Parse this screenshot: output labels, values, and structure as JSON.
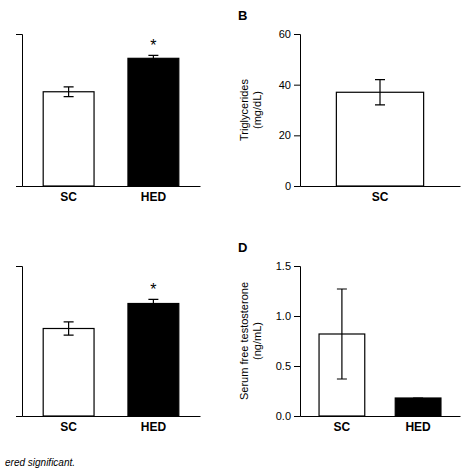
{
  "chart_data": [
    {
      "type": "bar",
      "categories": [
        "SC",
        "HED"
      ],
      "values": [
        155,
        210
      ],
      "errors": [
        8,
        5
      ],
      "colors": [
        "#ffffff",
        "#000000"
      ],
      "ylim": [
        0,
        250
      ],
      "tick_labels": "x",
      "annotations": [
        {
          "text": "*",
          "category": "HED"
        }
      ]
    },
    {
      "type": "bar",
      "title": "B",
      "categories": [
        "SC"
      ],
      "values": [
        37
      ],
      "errors": [
        5
      ],
      "colors": [
        "#ffffff"
      ],
      "ylim": [
        0,
        60
      ],
      "yticks": [
        0,
        20,
        40,
        60
      ],
      "ylabel": "Triglycerides\n(mg/dL)"
    },
    {
      "type": "bar",
      "categories": [
        "SC",
        "HED"
      ],
      "values": [
        1.05,
        1.35
      ],
      "errors": [
        0.08,
        0.05
      ],
      "colors": [
        "#ffffff",
        "#000000"
      ],
      "ylim": [
        0,
        1.8
      ],
      "tick_labels": "x",
      "annotations": [
        {
          "text": "*",
          "category": "HED"
        }
      ]
    },
    {
      "type": "bar",
      "title": "D",
      "categories": [
        "SC",
        "HED"
      ],
      "values": [
        0.82,
        0.18
      ],
      "errors": [
        0.45,
        0.0
      ],
      "colors": [
        "#ffffff",
        "#000000"
      ],
      "ylim": [
        0,
        1.5
      ],
      "yticks": [
        {
          "value": 0.0,
          "label": "0.0"
        },
        {
          "value": 0.5,
          "label": "0.5"
        },
        {
          "value": 1.0,
          "label": "1.0"
        },
        {
          "value": 1.5,
          "label": "1.5"
        }
      ],
      "ylabel": "Serum free testosterone\n(ng/mL)"
    }
  ],
  "footnote": "ered significant."
}
